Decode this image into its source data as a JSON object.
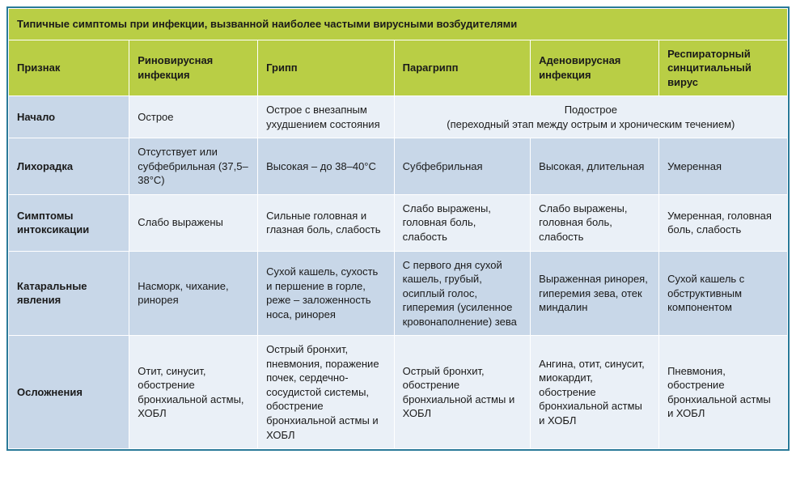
{
  "table": {
    "type": "table",
    "title": "Типичные симптомы при инфекции, вызванной наиболее частыми вирусными возбудителями",
    "columns": [
      "Признак",
      "Риновирусная инфекция",
      "Грипп",
      "Парагрипп",
      "Аденовирусная инфекция",
      "Респираторный синцитиальный вирус"
    ],
    "colors": {
      "header_bg": "#b9ce45",
      "sign_col_bg": "#c8d7e8",
      "row_odd_bg": "#eaf0f7",
      "row_even_bg": "#c8d7e8",
      "outer_border": "#2a7a99",
      "cell_border": "#ffffff",
      "text": "#1a1a1a"
    },
    "font": {
      "family": "Arial",
      "size_pt": 10,
      "header_weight": "bold"
    },
    "rows": [
      {
        "sign": "Начало",
        "rhinovirus": "Острое",
        "flu": "Острое с внезапным ухудшением состояния",
        "merged_3to5": "Подострое\n(переходный этап между острым и хроническим течением)"
      },
      {
        "sign": "Лихорадка",
        "rhinovirus": "Отсутствует или субфебрильная (37,5–38°C)",
        "flu": "Высокая – до 38–40°C",
        "paraflu": "Субфебрильная",
        "adenovirus": "Высокая, длительная",
        "rsv": "Умеренная"
      },
      {
        "sign": "Симптомы интоксикации",
        "rhinovirus": "Слабо выражены",
        "flu": "Сильные головная и глазная боль, слабость",
        "paraflu": "Слабо выражены, головная боль, слабость",
        "adenovirus": "Слабо выражены, головная боль, слабость",
        "rsv": "Умеренная, головная боль, слабость"
      },
      {
        "sign": "Катаральные явления",
        "rhinovirus": "Насморк, чихание, ринорея",
        "flu": "Сухой кашель, сухость и першение в горле, реже – заложенность носа, ринорея",
        "paraflu": "С первого дня сухой кашель, грубый, осиплый голос, гиперемия (усиленное кровонаполнение) зева",
        "adenovirus": "Выраженная ринорея, гиперемия зева, отек миндалин",
        "rsv": "Сухой кашель с обструктивным компонентом"
      },
      {
        "sign": "Осложнения",
        "rhinovirus": "Отит, синусит, обострение бронхиальной астмы, ХОБЛ",
        "flu": "Острый бронхит, пневмония, поражение почек, сердечно-сосудистой системы, обострение бронхиальной астмы и ХОБЛ",
        "paraflu": "Острый бронхит, обострение бронхиальной астмы и ХОБЛ",
        "adenovirus": "Ангина, отит, синусит, миокардит, обострение бронхиальной астмы и ХОБЛ",
        "rsv": "Пневмония, обострение бронхиальной астмы и ХОБЛ"
      }
    ]
  }
}
